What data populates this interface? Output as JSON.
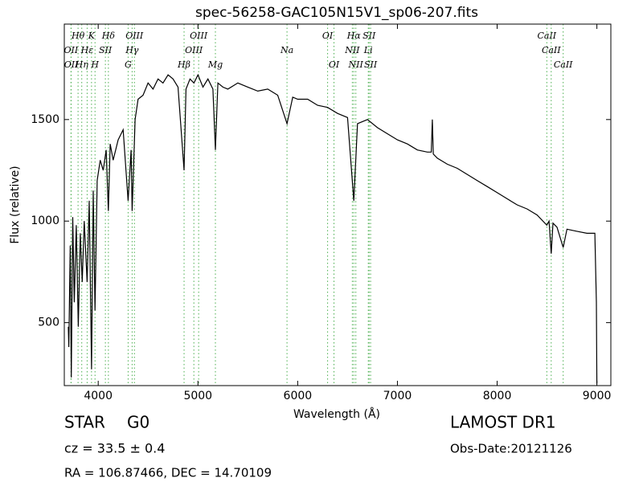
{
  "chart_data": {
    "type": "line",
    "title": "spec-56258-GAC105N15V1_sp06-207.fits",
    "xlabel": "Wavelength (Å)",
    "ylabel": "Flux (relative)",
    "xlim": [
      3660,
      9140
    ],
    "ylim": [
      190,
      1970
    ],
    "xticks": [
      4000,
      5000,
      6000,
      7000,
      8000,
      9000
    ],
    "yticks": [
      500,
      1000,
      1500
    ],
    "series": [
      {
        "color": "#000000",
        "x": [
          3700,
          3705,
          3720,
          3730,
          3745,
          3760,
          3780,
          3800,
          3820,
          3840,
          3860,
          3889,
          3910,
          3933,
          3950,
          3968,
          3990,
          4020,
          4050,
          4080,
          4102,
          4120,
          4150,
          4200,
          4250,
          4300,
          4330,
          4340,
          4370,
          4400,
          4450,
          4500,
          4550,
          4600,
          4650,
          4700,
          4750,
          4800,
          4861,
          4880,
          4920,
          4960,
          5000,
          5050,
          5100,
          5150,
          5175,
          5200,
          5250,
          5300,
          5400,
          5500,
          5600,
          5700,
          5800,
          5893,
          5950,
          6000,
          6100,
          6200,
          6300,
          6400,
          6500,
          6563,
          6600,
          6700,
          6800,
          6900,
          7000,
          7100,
          7200,
          7300,
          7340,
          7350,
          7360,
          7400,
          7500,
          7600,
          7700,
          7800,
          7900,
          8000,
          8100,
          8200,
          8300,
          8400,
          8498,
          8520,
          8542,
          8560,
          8600,
          8662,
          8700,
          8800,
          8900,
          8980,
          8995,
          9000
        ],
        "values": [
          480,
          380,
          880,
          230,
          1020,
          600,
          980,
          480,
          940,
          700,
          1000,
          700,
          1100,
          270,
          1150,
          560,
          1200,
          1300,
          1250,
          1350,
          1050,
          1380,
          1300,
          1400,
          1450,
          1100,
          1350,
          1050,
          1500,
          1600,
          1620,
          1680,
          1650,
          1700,
          1680,
          1720,
          1700,
          1660,
          1250,
          1650,
          1700,
          1680,
          1720,
          1660,
          1700,
          1650,
          1350,
          1680,
          1660,
          1650,
          1680,
          1660,
          1640,
          1650,
          1620,
          1480,
          1610,
          1600,
          1600,
          1570,
          1560,
          1530,
          1510,
          1100,
          1480,
          1500,
          1460,
          1430,
          1400,
          1380,
          1350,
          1340,
          1340,
          1500,
          1330,
          1310,
          1280,
          1260,
          1230,
          1200,
          1170,
          1140,
          1110,
          1080,
          1060,
          1030,
          980,
          1000,
          840,
          990,
          970,
          870,
          960,
          950,
          940,
          940,
          600,
          200
        ]
      }
    ],
    "lines": [
      {
        "label": "OII",
        "x": 3727
      },
      {
        "label": "OII",
        "x": 3729
      },
      {
        "label": "Hθ",
        "x": 3798
      },
      {
        "label": "Hη",
        "x": 3835
      },
      {
        "label": "Hε",
        "x": 3889
      },
      {
        "label": "K",
        "x": 3933
      },
      {
        "label": "H",
        "x": 3968
      },
      {
        "label": "SII",
        "x": 4072
      },
      {
        "label": "Hδ",
        "x": 4102
      },
      {
        "label": "G",
        "x": 4300
      },
      {
        "label": "Hγ",
        "x": 4340
      },
      {
        "label": "OIII",
        "x": 4363
      },
      {
        "label": "Hβ",
        "x": 4861
      },
      {
        "label": "OIII",
        "x": 4959
      },
      {
        "label": "OIII",
        "x": 5007
      },
      {
        "label": "Mg",
        "x": 5175
      },
      {
        "label": "Na",
        "x": 5893
      },
      {
        "label": "OI",
        "x": 6300
      },
      {
        "label": "OI",
        "x": 6364
      },
      {
        "label": "NII",
        "x": 6548
      },
      {
        "label": "Hα",
        "x": 6563
      },
      {
        "label": "NII",
        "x": 6583
      },
      {
        "label": "Li",
        "x": 6708
      },
      {
        "label": "SII",
        "x": 6716
      },
      {
        "label": "SII",
        "x": 6731
      },
      {
        "label": "CaII",
        "x": 8498
      },
      {
        "label": "CaII",
        "x": 8542
      },
      {
        "label": "CaII",
        "x": 8662
      }
    ],
    "line_color": "#4caf50",
    "annotations": {
      "class": "STAR",
      "subclass": "G0",
      "cz": "cz = 33.5 ± 0.4",
      "coords": "RA = 106.87466, DEC = 14.70109",
      "survey": "LAMOST DR1",
      "date": "Obs-Date:20121126"
    }
  }
}
